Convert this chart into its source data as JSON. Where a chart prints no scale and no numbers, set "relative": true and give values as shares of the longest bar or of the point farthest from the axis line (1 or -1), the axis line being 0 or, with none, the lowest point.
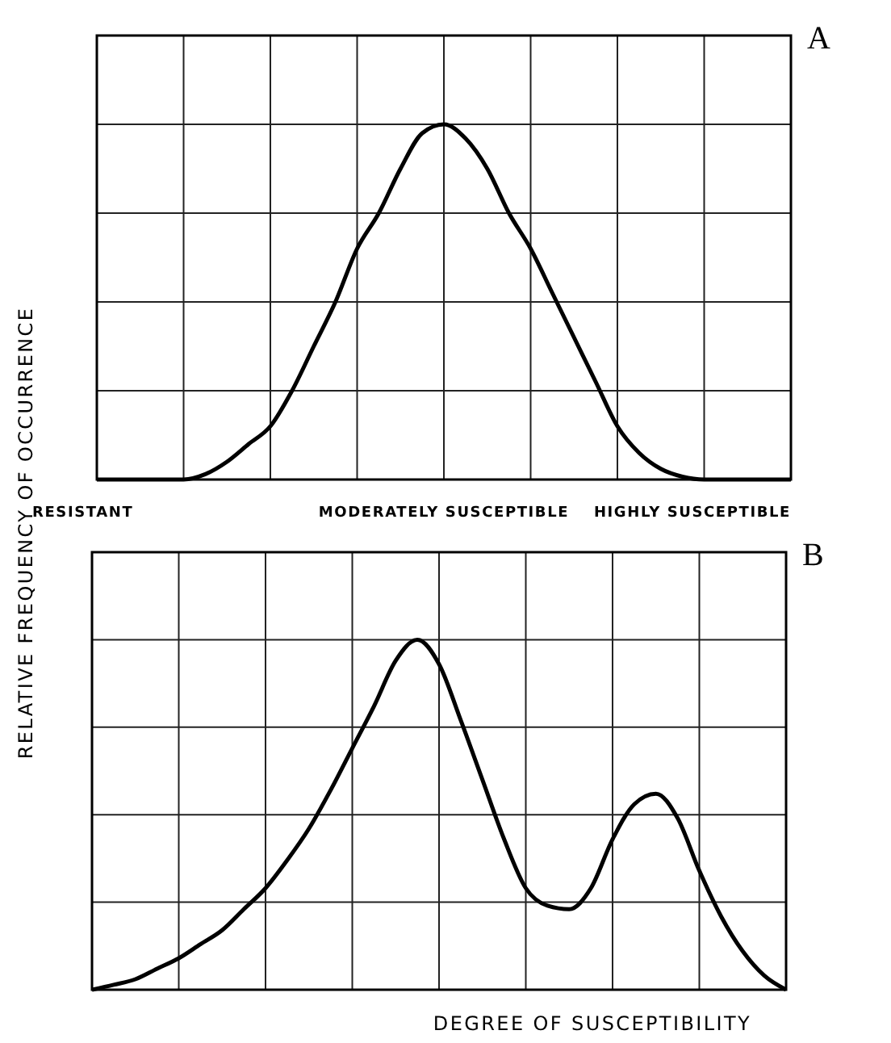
{
  "chart_data": [
    {
      "type": "line",
      "title": "A",
      "relative": true,
      "grid": true,
      "tick_labels": false,
      "marker": "none",
      "line_style": "solid",
      "annotations": [
        "RESISTANT",
        "MODERATELY SUSCEPTIBLE",
        "HIGHLY SUSCEPTIBLE"
      ],
      "categories": [
        null,
        null,
        null,
        null,
        null,
        null,
        null,
        null,
        null,
        null,
        null,
        null,
        null,
        null,
        null,
        null,
        null,
        null,
        null,
        null,
        null,
        null,
        null,
        null,
        null,
        null,
        null,
        null,
        null,
        null,
        null,
        null,
        null
      ],
      "series": [
        {
          "color": "#000000",
          "values": [
            0,
            0,
            0,
            0,
            0,
            0.015,
            0.05,
            0.1,
            0.15,
            0.25,
            0.375,
            0.5,
            0.65,
            0.75,
            0.875,
            0.975,
            1,
            0.96,
            0.875,
            0.75,
            0.65,
            0.525,
            0.4,
            0.275,
            0.15,
            0.075,
            0.03,
            0.008,
            0,
            0,
            0,
            0,
            0
          ]
        }
      ]
    },
    {
      "type": "line",
      "title": "B",
      "xlabel": "DEGREE OF SUSCEPTIBILITY",
      "ylabel": "RELATIVE FREQUENCY OF OCCURRENCE",
      "relative": true,
      "grid": true,
      "tick_labels": false,
      "marker": "none",
      "line_style": "solid",
      "categories": [
        null,
        null,
        null,
        null,
        null,
        null,
        null,
        null,
        null,
        null,
        null,
        null,
        null,
        null,
        null,
        null,
        null,
        null,
        null,
        null,
        null,
        null,
        null,
        null,
        null,
        null,
        null,
        null,
        null,
        null,
        null,
        null,
        null
      ],
      "series": [
        {
          "color": "#000000",
          "values": [
            0,
            0.014,
            0.03,
            0.06,
            0.09,
            0.13,
            0.17,
            0.23,
            0.29,
            0.37,
            0.46,
            0.57,
            0.69,
            0.81,
            0.94,
            1,
            0.93,
            0.77,
            0.6,
            0.43,
            0.29,
            0.24,
            0.23,
            0.29,
            0.43,
            0.53,
            0.56,
            0.49,
            0.34,
            0.21,
            0.11,
            0.04,
            0
          ]
        }
      ]
    }
  ]
}
